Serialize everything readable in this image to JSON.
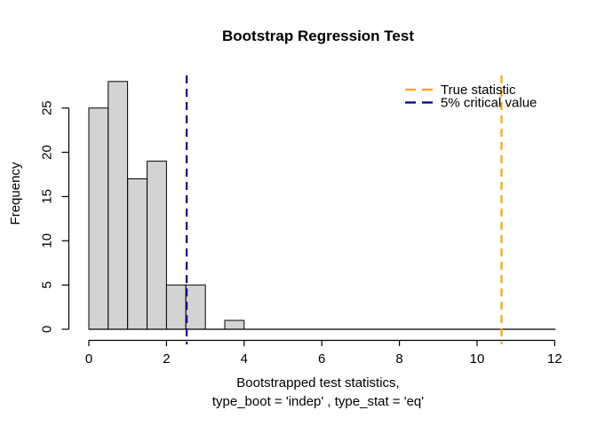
{
  "window": {
    "background": "#ffffff"
  },
  "chart_data": {
    "type": "histogram",
    "title": "Bootstrap Regression Test",
    "xlabel_line1": "Bootstrapped test statistics,",
    "xlabel_line2": "type_boot = 'indep' , type_stat = 'eq'",
    "ylabel": "Frequency",
    "bins": {
      "start": 0,
      "bin_width": 0.5,
      "frequencies": [
        25,
        28,
        17,
        19,
        5,
        5,
        0,
        1
      ]
    },
    "x_ticks": [
      0,
      2,
      4,
      6,
      8,
      10,
      12
    ],
    "y_ticks": [
      0,
      5,
      10,
      15,
      20,
      25
    ],
    "xlim": [
      0,
      12
    ],
    "ylim": [
      0,
      28
    ],
    "baseline_extent": [
      0,
      12
    ],
    "grid": "off",
    "bar_fill": "#d3d3d3",
    "bar_stroke": "#000000",
    "vlines": [
      {
        "name": "critical-value",
        "value": 2.52,
        "color": "#000080",
        "style": "dashed",
        "label": "5% critical value"
      },
      {
        "name": "true-statistic",
        "value": 10.63,
        "color": "#FFA500",
        "style": "dashed",
        "label": "True statistic"
      }
    ],
    "legend": {
      "position": "top-right",
      "box": "none",
      "entries": [
        {
          "label": "True statistic",
          "color": "#FFA500",
          "line_style": "dashed"
        },
        {
          "label": "5% critical value",
          "color": "#000080",
          "line_style": "dashed"
        }
      ]
    }
  }
}
